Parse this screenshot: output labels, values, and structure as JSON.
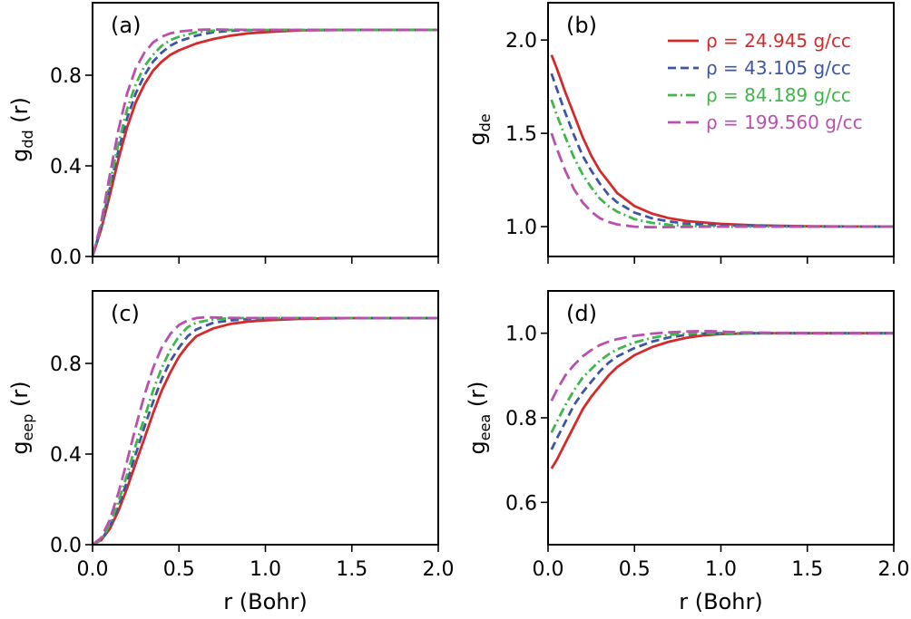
{
  "chart_data": {
    "type": "line",
    "xlabel": "r (Bohr)",
    "xlim": [
      0,
      2
    ],
    "xticks": [
      0,
      0.5,
      1,
      1.5,
      2
    ],
    "xtick_labels": [
      "0.0",
      "0.5",
      "1.0",
      "1.5",
      "2.0"
    ],
    "legend": [
      {
        "label": "ρ = 24.945 g/cc",
        "color": "#d42a2a",
        "style": "solid"
      },
      {
        "label": "ρ = 43.105 g/cc",
        "color": "#3d55a5",
        "style": "dash"
      },
      {
        "label": "ρ = 84.189 g/cc",
        "color": "#3fb54a",
        "style": "dashdot"
      },
      {
        "label": "ρ = 199.560 g/cc",
        "color": "#b94fae",
        "style": "longdash"
      }
    ],
    "panels": [
      {
        "id": "a",
        "label": "(a)",
        "ylabel_main": "g",
        "ylabel_sub": "dd",
        "ylabel_tail": " (r)",
        "ylim": [
          0,
          1.12
        ],
        "yticks": [
          0,
          0.4,
          0.8
        ],
        "ytick_labels": [
          "0.0",
          "0.4",
          "0.8"
        ],
        "series": [
          {
            "x": [
              0,
              0.05,
              0.1,
              0.15,
              0.2,
              0.25,
              0.3,
              0.35,
              0.4,
              0.45,
              0.5,
              0.6,
              0.7,
              0.8,
              0.9,
              1.0,
              1.2,
              1.5,
              2.0
            ],
            "y": [
              0,
              0.12,
              0.27,
              0.43,
              0.57,
              0.68,
              0.76,
              0.82,
              0.86,
              0.89,
              0.91,
              0.94,
              0.96,
              0.975,
              0.985,
              0.99,
              0.998,
              1.0,
              1.0
            ]
          },
          {
            "x": [
              0,
              0.05,
              0.1,
              0.15,
              0.2,
              0.25,
              0.3,
              0.35,
              0.4,
              0.45,
              0.5,
              0.6,
              0.7,
              0.8,
              0.9,
              1.0,
              1.5,
              2.0
            ],
            "y": [
              0,
              0.13,
              0.3,
              0.47,
              0.61,
              0.72,
              0.8,
              0.86,
              0.9,
              0.93,
              0.95,
              0.975,
              0.99,
              0.996,
              0.999,
              1.0,
              1.0,
              1.0
            ]
          },
          {
            "x": [
              0,
              0.05,
              0.1,
              0.15,
              0.2,
              0.25,
              0.3,
              0.35,
              0.4,
              0.45,
              0.5,
              0.6,
              0.7,
              0.8,
              1.0,
              1.5,
              2.0
            ],
            "y": [
              0,
              0.14,
              0.32,
              0.5,
              0.65,
              0.76,
              0.84,
              0.89,
              0.93,
              0.955,
              0.97,
              0.99,
              0.997,
              1.0,
              1.0,
              1.0,
              1.0
            ]
          },
          {
            "x": [
              0,
              0.05,
              0.1,
              0.15,
              0.2,
              0.25,
              0.3,
              0.35,
              0.4,
              0.45,
              0.5,
              0.6,
              0.7,
              0.8,
              1.0,
              1.5,
              2.0
            ],
            "y": [
              0,
              0.15,
              0.36,
              0.56,
              0.72,
              0.83,
              0.9,
              0.945,
              0.97,
              0.985,
              0.993,
              1.0,
              1.002,
              1.001,
              1.0,
              1.0,
              1.0
            ]
          }
        ]
      },
      {
        "id": "b",
        "label": "(b)",
        "ylabel_main": "g",
        "ylabel_sub": "de",
        "ylabel_tail": "",
        "ylim": [
          0.84,
          2.2
        ],
        "yticks": [
          1.0,
          1.5,
          2.0
        ],
        "ytick_labels": [
          "1.0",
          "1.5",
          "2.0"
        ],
        "show_legend": true,
        "series": [
          {
            "x": [
              0.02,
              0.05,
              0.1,
              0.15,
              0.2,
              0.25,
              0.3,
              0.35,
              0.4,
              0.5,
              0.6,
              0.7,
              0.8,
              1.0,
              1.2,
              1.5,
              2.0
            ],
            "y": [
              1.92,
              1.85,
              1.72,
              1.6,
              1.48,
              1.38,
              1.3,
              1.24,
              1.18,
              1.11,
              1.07,
              1.045,
              1.03,
              1.015,
              1.007,
              1.002,
              1.0
            ]
          },
          {
            "x": [
              0.02,
              0.05,
              0.1,
              0.15,
              0.2,
              0.25,
              0.3,
              0.35,
              0.4,
              0.5,
              0.6,
              0.7,
              0.8,
              1.0,
              1.5,
              2.0
            ],
            "y": [
              1.82,
              1.74,
              1.61,
              1.49,
              1.38,
              1.3,
              1.23,
              1.17,
              1.13,
              1.075,
              1.045,
              1.028,
              1.016,
              1.006,
              1.001,
              1.0
            ]
          },
          {
            "x": [
              0.02,
              0.05,
              0.1,
              0.15,
              0.2,
              0.25,
              0.3,
              0.35,
              0.4,
              0.5,
              0.6,
              0.7,
              0.8,
              1.0,
              1.5,
              2.0
            ],
            "y": [
              1.68,
              1.6,
              1.48,
              1.37,
              1.28,
              1.21,
              1.15,
              1.11,
              1.08,
              1.04,
              1.02,
              1.01,
              1.004,
              1.0,
              1.0,
              1.0
            ]
          },
          {
            "x": [
              0.02,
              0.05,
              0.1,
              0.15,
              0.2,
              0.25,
              0.3,
              0.35,
              0.4,
              0.5,
              0.6,
              0.7,
              0.8,
              1.0,
              1.5,
              2.0
            ],
            "y": [
              1.5,
              1.42,
              1.3,
              1.2,
              1.13,
              1.08,
              1.045,
              1.025,
              1.012,
              1.0,
              0.997,
              0.998,
              0.999,
              1.0,
              1.0,
              1.0
            ]
          }
        ]
      },
      {
        "id": "c",
        "label": "(c)",
        "ylabel_main": "g",
        "ylabel_sub": "eep",
        "ylabel_tail": " (r)",
        "ylim": [
          0,
          1.12
        ],
        "yticks": [
          0,
          0.4,
          0.8
        ],
        "ytick_labels": [
          "0.0",
          "0.4",
          "0.8"
        ],
        "series": [
          {
            "x": [
              0,
              0.05,
              0.1,
              0.15,
              0.2,
              0.25,
              0.3,
              0.35,
              0.4,
              0.45,
              0.5,
              0.55,
              0.6,
              0.7,
              0.8,
              0.9,
              1.0,
              1.2,
              1.5,
              2.0
            ],
            "y": [
              0,
              0.02,
              0.07,
              0.15,
              0.25,
              0.36,
              0.47,
              0.58,
              0.68,
              0.76,
              0.83,
              0.88,
              0.92,
              0.955,
              0.975,
              0.985,
              0.99,
              0.997,
              1.0,
              1.0
            ]
          },
          {
            "x": [
              0,
              0.05,
              0.1,
              0.15,
              0.2,
              0.25,
              0.3,
              0.35,
              0.4,
              0.45,
              0.5,
              0.55,
              0.6,
              0.7,
              0.8,
              0.9,
              1.0,
              1.5,
              2.0
            ],
            "y": [
              0,
              0.02,
              0.08,
              0.17,
              0.28,
              0.4,
              0.52,
              0.63,
              0.73,
              0.81,
              0.87,
              0.92,
              0.95,
              0.98,
              0.99,
              0.996,
              1.0,
              1.0,
              1.0
            ]
          },
          {
            "x": [
              0,
              0.05,
              0.1,
              0.15,
              0.2,
              0.25,
              0.3,
              0.35,
              0.4,
              0.45,
              0.5,
              0.55,
              0.6,
              0.7,
              0.8,
              1.0,
              1.5,
              2.0
            ],
            "y": [
              0,
              0.02,
              0.09,
              0.19,
              0.31,
              0.44,
              0.56,
              0.68,
              0.78,
              0.86,
              0.92,
              0.96,
              0.98,
              0.995,
              1.0,
              1.0,
              1.0,
              1.0
            ]
          },
          {
            "x": [
              0,
              0.05,
              0.1,
              0.15,
              0.2,
              0.25,
              0.3,
              0.35,
              0.4,
              0.45,
              0.5,
              0.55,
              0.6,
              0.65,
              0.7,
              0.8,
              1.0,
              1.5,
              2.0
            ],
            "y": [
              0,
              0.03,
              0.11,
              0.23,
              0.37,
              0.52,
              0.66,
              0.78,
              0.87,
              0.93,
              0.97,
              0.99,
              1.0,
              1.004,
              1.003,
              1.001,
              1.0,
              1.0,
              1.0
            ]
          }
        ]
      },
      {
        "id": "d",
        "label": "(d)",
        "ylabel_main": "g",
        "ylabel_sub": "eea",
        "ylabel_tail": " (r)",
        "ylim": [
          0.5,
          1.1
        ],
        "yticks": [
          0.6,
          0.8,
          1.0
        ],
        "ytick_labels": [
          "0.6",
          "0.8",
          "1.0"
        ],
        "series": [
          {
            "x": [
              0.02,
              0.05,
              0.1,
              0.15,
              0.2,
              0.25,
              0.3,
              0.35,
              0.4,
              0.5,
              0.6,
              0.7,
              0.8,
              0.9,
              1.0,
              1.2,
              1.5,
              2.0
            ],
            "y": [
              0.68,
              0.7,
              0.74,
              0.78,
              0.82,
              0.85,
              0.875,
              0.9,
              0.92,
              0.948,
              0.967,
              0.98,
              0.989,
              0.995,
              0.998,
              1.0,
              1.0,
              1.0
            ]
          },
          {
            "x": [
              0.02,
              0.05,
              0.1,
              0.15,
              0.2,
              0.25,
              0.3,
              0.35,
              0.4,
              0.5,
              0.6,
              0.7,
              0.8,
              0.9,
              1.0,
              1.5,
              2.0
            ],
            "y": [
              0.725,
              0.75,
              0.79,
              0.83,
              0.86,
              0.885,
              0.91,
              0.93,
              0.945,
              0.965,
              0.98,
              0.99,
              0.996,
              0.999,
              1.0,
              1.0,
              1.0
            ]
          },
          {
            "x": [
              0.02,
              0.05,
              0.1,
              0.15,
              0.2,
              0.25,
              0.3,
              0.35,
              0.4,
              0.5,
              0.6,
              0.7,
              0.8,
              0.9,
              1.0,
              1.5,
              2.0
            ],
            "y": [
              0.765,
              0.79,
              0.83,
              0.865,
              0.895,
              0.915,
              0.935,
              0.95,
              0.962,
              0.978,
              0.989,
              0.996,
              0.999,
              1.0,
              1.0,
              1.0,
              1.0
            ]
          },
          {
            "x": [
              0.02,
              0.05,
              0.1,
              0.15,
              0.2,
              0.25,
              0.3,
              0.35,
              0.4,
              0.5,
              0.6,
              0.7,
              0.8,
              0.9,
              1.0,
              1.1,
              1.5,
              2.0
            ],
            "y": [
              0.84,
              0.865,
              0.9,
              0.925,
              0.945,
              0.96,
              0.972,
              0.98,
              0.986,
              0.994,
              0.999,
              1.002,
              1.004,
              1.005,
              1.004,
              1.002,
              1.0,
              1.0
            ]
          }
        ]
      }
    ]
  }
}
